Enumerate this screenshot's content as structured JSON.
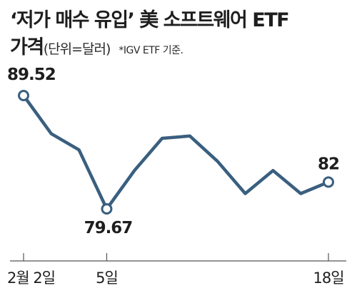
{
  "header": {
    "title": "‘저가 매수 유입’ 美 소프트웨어 ETF",
    "title_line2": "가격",
    "unit": "(단위=달러)",
    "note": "*IGV ETF 기준."
  },
  "chart_data": {
    "type": "line",
    "title": "‘저가 매수 유입’ 美 소프트웨어 ETF 가격",
    "ylabel": "(단위=달러)",
    "note": "*IGV ETF 기준.",
    "x": [
      "2월 2일",
      "",
      "",
      "5일",
      "",
      "",
      "",
      "",
      "",
      "",
      "",
      "18일"
    ],
    "x_tick_labels": [
      "2월 2일",
      "5일",
      "18일"
    ],
    "x_tick_indices": [
      0,
      3,
      11
    ],
    "y": [
      89.52,
      86.2,
      84.8,
      79.67,
      83.0,
      85.8,
      86.0,
      83.8,
      81.0,
      83.0,
      81.0,
      82.0
    ],
    "data_labels": [
      {
        "index": 0,
        "text": "89.52"
      },
      {
        "index": 3,
        "text": "79.67"
      },
      {
        "index": 11,
        "text": "82"
      }
    ],
    "ylim": [
      78.5,
      91
    ],
    "grid": false,
    "color": "#3a5f7f"
  }
}
